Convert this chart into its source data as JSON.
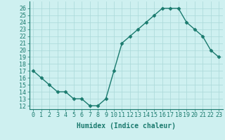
{
  "x": [
    0,
    1,
    2,
    3,
    4,
    5,
    6,
    7,
    8,
    9,
    10,
    11,
    12,
    13,
    14,
    15,
    16,
    17,
    18,
    19,
    20,
    21,
    22,
    23
  ],
  "y": [
    17,
    16,
    15,
    14,
    14,
    13,
    13,
    12,
    12,
    13,
    17,
    21,
    22,
    23,
    24,
    25,
    26,
    26,
    26,
    24,
    23,
    22,
    20,
    19
  ],
  "line_color": "#1a7a6e",
  "marker": "D",
  "marker_size": 2.5,
  "bg_color": "#cef0f0",
  "grid_color": "#aad8d8",
  "xlabel": "Humidex (Indice chaleur)",
  "ylim": [
    11.5,
    27
  ],
  "xlim": [
    -0.5,
    23.5
  ],
  "yticks": [
    12,
    13,
    14,
    15,
    16,
    17,
    18,
    19,
    20,
    21,
    22,
    23,
    24,
    25,
    26
  ],
  "xticks": [
    0,
    1,
    2,
    3,
    4,
    5,
    6,
    7,
    8,
    9,
    10,
    11,
    12,
    13,
    14,
    15,
    16,
    17,
    18,
    19,
    20,
    21,
    22,
    23
  ],
  "xlabel_fontsize": 7,
  "tick_fontsize": 6,
  "line_width": 1.0
}
